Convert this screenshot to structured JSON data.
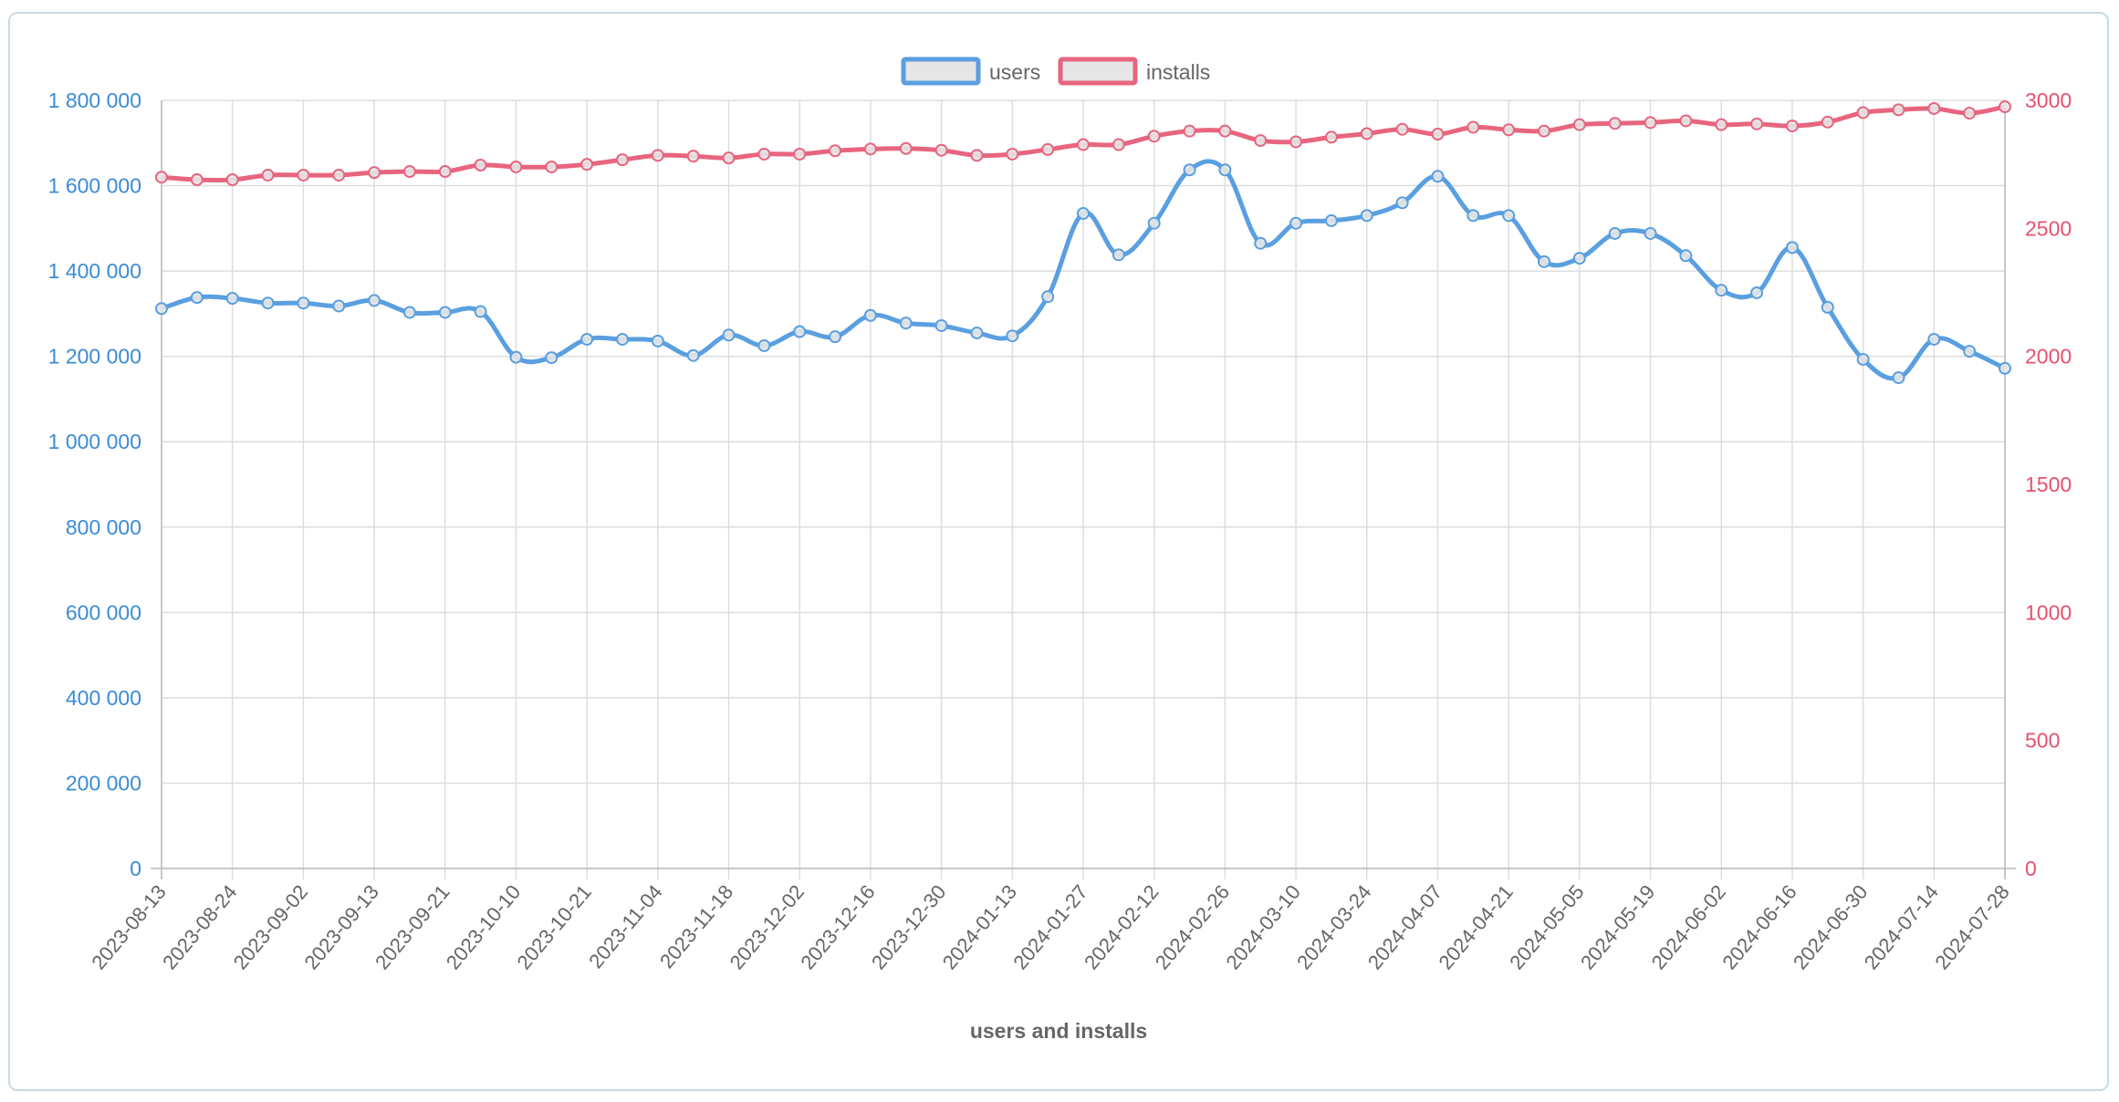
{
  "chart_data": {
    "type": "line",
    "xlabel": "users and installs",
    "legend_position": "top",
    "grid": true,
    "colors": {
      "users": "#5a9fe0",
      "installs": "#e8657f"
    },
    "y_left": {
      "min": 0,
      "max": 1800000,
      "ticks": [
        "0",
        "200 000",
        "400 000",
        "600 000",
        "800 000",
        "1 000 000",
        "1 200 000",
        "1 400 000",
        "1 600 000",
        "1 800 000"
      ],
      "tick_values": [
        0,
        200000,
        400000,
        600000,
        800000,
        1000000,
        1200000,
        1400000,
        1600000,
        1800000
      ]
    },
    "y_right": {
      "min": 0,
      "max": 3000,
      "ticks": [
        "0",
        "500",
        "1000",
        "1500",
        "2000",
        "2500",
        "3000"
      ],
      "tick_values": [
        0,
        500,
        1000,
        1500,
        2000,
        2500,
        3000
      ]
    },
    "x_tick_labels": [
      "2023-08-13",
      "2023-08-24",
      "2023-09-02",
      "2023-09-13",
      "2023-09-21",
      "2023-10-10",
      "2023-10-21",
      "2023-11-04",
      "2023-11-18",
      "2023-12-02",
      "2023-12-16",
      "2023-12-30",
      "2024-01-13",
      "2024-01-27",
      "2024-02-12",
      "2024-02-26",
      "2024-03-10",
      "2024-03-24",
      "2024-04-07",
      "2024-04-21",
      "2024-05-05",
      "2024-05-19",
      "2024-06-02",
      "2024-06-16",
      "2024-06-30",
      "2024-07-14",
      "2024-07-28"
    ],
    "series": [
      {
        "name": "users",
        "axis": "left",
        "values": [
          1312000,
          1338000,
          1336000,
          1325000,
          1325000,
          1318000,
          1331000,
          1303000,
          1303000,
          1305000,
          1198000,
          1197000,
          1240000,
          1240000,
          1236000,
          1202000,
          1250000,
          1225000,
          1258000,
          1246000,
          1296000,
          1278000,
          1272000,
          1255000,
          1248000,
          1340000,
          1535000,
          1438000,
          1512000,
          1637000,
          1637000,
          1465000,
          1512000,
          1518000,
          1530000,
          1560000,
          1622000,
          1530000,
          1530000,
          1422000,
          1430000,
          1488000,
          1488000,
          1436000,
          1355000,
          1349000,
          1455000,
          1315000,
          1193000,
          1150000,
          1240000,
          1212000,
          1172000
        ]
      },
      {
        "name": "installs",
        "axis": "right",
        "values": [
          2700,
          2690,
          2690,
          2708,
          2708,
          2708,
          2718,
          2722,
          2722,
          2747,
          2740,
          2740,
          2750,
          2768,
          2785,
          2782,
          2775,
          2790,
          2790,
          2803,
          2810,
          2812,
          2805,
          2785,
          2790,
          2808,
          2827,
          2827,
          2860,
          2880,
          2880,
          2843,
          2838,
          2856,
          2870,
          2887,
          2868,
          2895,
          2885,
          2880,
          2905,
          2910,
          2913,
          2920,
          2905,
          2908,
          2900,
          2915,
          2952,
          2963,
          2968,
          2950,
          2975
        ]
      }
    ]
  }
}
